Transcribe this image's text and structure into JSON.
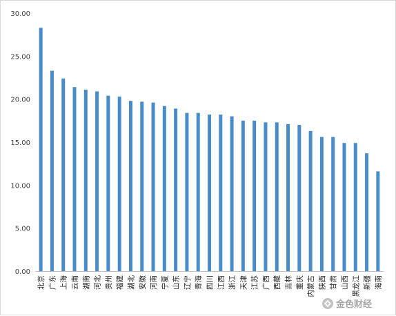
{
  "chart_data": {
    "type": "bar",
    "title": "",
    "xlabel": "",
    "ylabel": "",
    "ylim": [
      0,
      30
    ],
    "yticks": [
      "0.00",
      "5.00",
      "10.00",
      "15.00",
      "20.00",
      "25.00",
      "30.00"
    ],
    "ytick_values": [
      0,
      5,
      10,
      15,
      20,
      25,
      30
    ],
    "grid": "none",
    "legend": "none",
    "bar_color": "#4a8cc9",
    "categories": [
      "北京",
      "广东",
      "上海",
      "云南",
      "湖南",
      "河北",
      "贵州",
      "福建",
      "湖北",
      "安徽",
      "河南",
      "宁夏",
      "山东",
      "辽宁",
      "青海",
      "四川",
      "江西",
      "浙江",
      "天津",
      "江苏",
      "广西",
      "西藏",
      "吉林",
      "重庆",
      "内蒙古",
      "陕西",
      "甘肃",
      "山西",
      "黑龙江",
      "新疆",
      "海南"
    ],
    "values": [
      28.3,
      23.3,
      22.4,
      21.4,
      21.1,
      20.9,
      20.4,
      20.3,
      19.8,
      19.7,
      19.6,
      19.2,
      18.9,
      18.4,
      18.4,
      18.2,
      18.2,
      18.0,
      17.5,
      17.5,
      17.3,
      17.3,
      17.1,
      17.0,
      16.3,
      15.6,
      15.6,
      14.9,
      14.9,
      13.7,
      11.6
    ]
  },
  "watermark": {
    "text": "金色财经",
    "icon": "gold-finance-logo-icon"
  }
}
